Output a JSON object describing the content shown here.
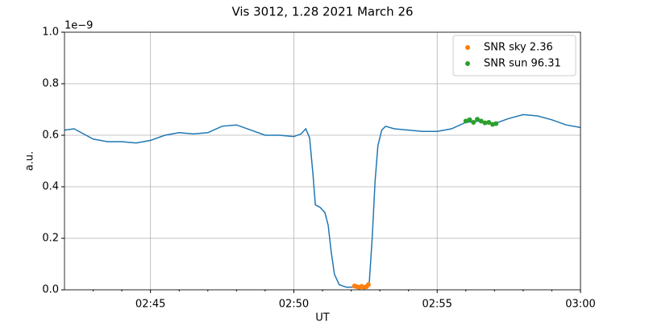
{
  "chart_data": {
    "type": "line",
    "title": "Vis 3012, 1.28 2021 March 26",
    "xlabel": "UT",
    "ylabel": "a.u.",
    "y_offset_label": "1e−9",
    "xlim": [
      "02:42",
      "03:00"
    ],
    "xticks": [
      "02:45",
      "02:50",
      "02:55",
      "03:00"
    ],
    "xminorticks": [
      "02:43",
      "02:44",
      "02:46",
      "02:47",
      "02:48",
      "02:49",
      "02:51",
      "02:52",
      "02:53",
      "02:54",
      "02:56",
      "02:57",
      "02:58",
      "02:59"
    ],
    "ylim": [
      0,
      1
    ],
    "yticks": [
      {
        "value": 0,
        "label": "0.0"
      },
      0.2,
      0.4,
      0.6,
      0.8,
      {
        "value": 1,
        "label": "1.0"
      }
    ],
    "grid": true,
    "legend": "upper right",
    "series": [
      {
        "mode": "line",
        "color": "#1f77b4",
        "x": [
          "02:42:00",
          "02:42:20",
          "02:42:40",
          "02:43:00",
          "02:43:30",
          "02:44:00",
          "02:44:30",
          "02:45:00",
          "02:45:30",
          "02:46:00",
          "02:46:30",
          "02:47:00",
          "02:47:30",
          "02:48:00",
          "02:48:30",
          "02:49:00",
          "02:49:30",
          "02:50:00",
          "02:50:15",
          "02:50:25",
          "02:50:33",
          "02:50:40",
          "02:50:45",
          "02:50:55",
          "02:51:05",
          "02:51:12",
          "02:51:18",
          "02:51:25",
          "02:51:35",
          "02:51:50",
          "02:52:10",
          "02:52:30",
          "02:52:38",
          "02:52:44",
          "02:52:50",
          "02:52:56",
          "02:53:04",
          "02:53:12",
          "02:53:30",
          "02:54:00",
          "02:54:30",
          "02:55:00",
          "02:55:30",
          "02:56:00",
          "02:56:30",
          "02:57:00",
          "02:57:30",
          "02:58:00",
          "02:58:30",
          "02:59:00",
          "02:59:30",
          "03:00:00"
        ],
        "values": [
          0.62,
          0.625,
          0.605,
          0.585,
          0.575,
          0.575,
          0.57,
          0.58,
          0.6,
          0.61,
          0.605,
          0.61,
          0.635,
          0.64,
          0.62,
          0.6,
          0.6,
          0.595,
          0.605,
          0.625,
          0.59,
          0.45,
          0.33,
          0.32,
          0.3,
          0.25,
          0.15,
          0.06,
          0.02,
          0.01,
          0.01,
          0.01,
          0.03,
          0.2,
          0.42,
          0.56,
          0.62,
          0.635,
          0.625,
          0.62,
          0.615,
          0.615,
          0.625,
          0.65,
          0.655,
          0.645,
          0.665,
          0.68,
          0.675,
          0.66,
          0.64,
          0.63
        ]
      },
      {
        "name": "SNR sky 2.36",
        "mode": "markers",
        "color": "#ff7f0e",
        "x": [
          "02:52:07",
          "02:52:12",
          "02:52:17",
          "02:52:22",
          "02:52:27",
          "02:52:32",
          "02:52:36"
        ],
        "values": [
          0.015,
          0.012,
          0.01,
          0.013,
          0.01,
          0.012,
          0.02
        ]
      },
      {
        "name": "SNR sun 96.31",
        "mode": "markers",
        "color": "#2ca02c",
        "x": [
          "02:56:00",
          "02:56:08",
          "02:56:16",
          "02:56:24",
          "02:56:32",
          "02:56:40",
          "02:56:48",
          "02:56:56",
          "02:57:03"
        ],
        "values": [
          0.655,
          0.66,
          0.65,
          0.662,
          0.655,
          0.648,
          0.65,
          0.642,
          0.645
        ]
      }
    ]
  }
}
